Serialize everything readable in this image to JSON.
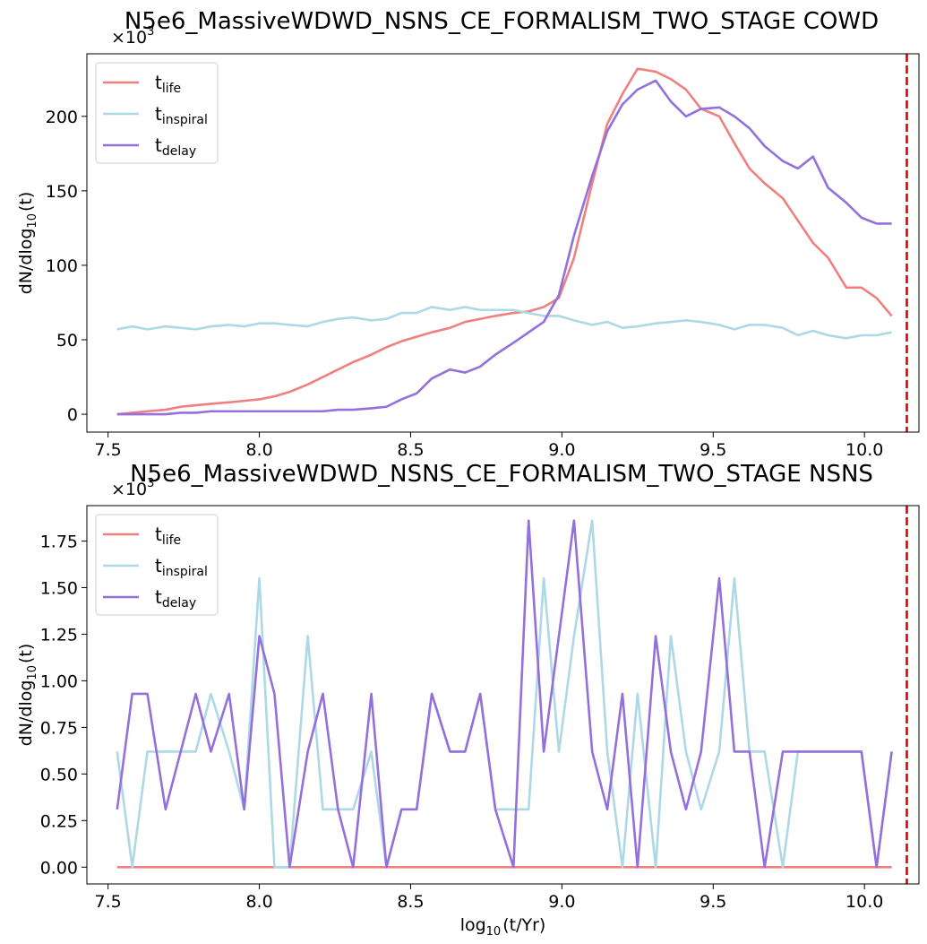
{
  "chart_data": [
    {
      "type": "line",
      "title": "N5e6_MassiveWDWD_NSNS_CE_FORMALISM_TWO_STAGE COWD",
      "xlabel": "",
      "ylabel_main": "dN/dlog",
      "ylabel_sub": "10",
      "ylabel_arg": "(t)",
      "sci_multiplier": "×10",
      "sci_exponent": "3",
      "xlim": [
        7.43,
        10.18
      ],
      "ylim": [
        -12,
        242
      ],
      "xticks": [
        "7.5",
        "8.0",
        "8.5",
        "9.0",
        "9.5",
        "10.0"
      ],
      "yticks": [
        "0",
        "50",
        "100",
        "150",
        "200"
      ],
      "vline": {
        "x": 10.14,
        "color": "#e00000"
      },
      "legend_position": "upper-left",
      "x": [
        7.53,
        7.58,
        7.63,
        7.69,
        7.74,
        7.79,
        7.84,
        7.9,
        7.95,
        8.0,
        8.05,
        8.1,
        8.16,
        8.21,
        8.26,
        8.31,
        8.37,
        8.42,
        8.47,
        8.52,
        8.57,
        8.63,
        8.68,
        8.73,
        8.78,
        8.84,
        8.89,
        8.94,
        8.99,
        9.04,
        9.1,
        9.15,
        9.2,
        9.25,
        9.31,
        9.36,
        9.41,
        9.46,
        9.52,
        9.57,
        9.62,
        9.67,
        9.73,
        9.78,
        9.83,
        9.88,
        9.94,
        9.99,
        10.04,
        10.09
      ],
      "series": [
        {
          "name": "t",
          "sub": "life",
          "color": "#f08080",
          "values": [
            0,
            1,
            2,
            3,
            5,
            6,
            7,
            8,
            9,
            10,
            12,
            15,
            20,
            25,
            30,
            35,
            40,
            45,
            49,
            52,
            55,
            58,
            62,
            64,
            66,
            68,
            69,
            72,
            78,
            105,
            155,
            195,
            215,
            232,
            230,
            225,
            218,
            205,
            200,
            182,
            165,
            155,
            145,
            130,
            115,
            105,
            85,
            85,
            78,
            66
          ]
        },
        {
          "name": "t",
          "sub": "inspiral",
          "color": "#add8e6",
          "values": [
            57,
            59,
            57,
            59,
            58,
            57,
            59,
            60,
            59,
            61,
            61,
            60,
            59,
            62,
            64,
            65,
            63,
            64,
            68,
            68,
            72,
            70,
            72,
            70,
            70,
            70,
            68,
            66,
            66,
            63,
            60,
            62,
            58,
            59,
            61,
            62,
            63,
            62,
            60,
            57,
            60,
            60,
            58,
            53,
            56,
            53,
            51,
            53,
            53,
            55
          ]
        },
        {
          "name": "t",
          "sub": "delay",
          "color": "#9370db",
          "values": [
            0,
            0,
            0,
            0,
            1,
            1,
            2,
            2,
            2,
            2,
            2,
            2,
            2,
            2,
            3,
            3,
            4,
            5,
            10,
            14,
            24,
            30,
            28,
            32,
            40,
            48,
            55,
            62,
            80,
            120,
            160,
            190,
            208,
            218,
            224,
            210,
            200,
            205,
            206,
            200,
            192,
            180,
            170,
            165,
            173,
            152,
            142,
            132,
            128,
            128
          ]
        }
      ]
    },
    {
      "type": "line",
      "title": "N5e6_MassiveWDWD_NSNS_CE_FORMALISM_TWO_STAGE NSNS",
      "xlabel_main": "log",
      "xlabel_sub": "10",
      "xlabel_arg": "(t/Yr)",
      "ylabel_main": "dN/dlog",
      "ylabel_sub": "10",
      "ylabel_arg": "(t)",
      "sci_multiplier": "×10",
      "sci_exponent": "3",
      "xlim": [
        7.43,
        10.18
      ],
      "ylim": [
        -0.09,
        1.94
      ],
      "xticks": [
        "7.5",
        "8.0",
        "8.5",
        "9.0",
        "9.5",
        "10.0"
      ],
      "yticks": [
        "0.00",
        "0.25",
        "0.50",
        "0.75",
        "1.00",
        "1.25",
        "1.50",
        "1.75"
      ],
      "vline": {
        "x": 10.14,
        "color": "#e00000"
      },
      "legend_position": "upper-left",
      "x": [
        7.53,
        7.58,
        7.63,
        7.69,
        7.74,
        7.79,
        7.84,
        7.9,
        7.95,
        8.0,
        8.05,
        8.1,
        8.16,
        8.21,
        8.26,
        8.31,
        8.37,
        8.42,
        8.47,
        8.52,
        8.57,
        8.63,
        8.68,
        8.73,
        8.78,
        8.84,
        8.89,
        8.94,
        8.99,
        9.04,
        9.1,
        9.15,
        9.2,
        9.25,
        9.31,
        9.36,
        9.41,
        9.46,
        9.52,
        9.57,
        9.62,
        9.67,
        9.73,
        9.78,
        9.83,
        9.88,
        9.94,
        9.99,
        10.04,
        10.09
      ],
      "series": [
        {
          "name": "t",
          "sub": "life",
          "color": "#f08080",
          "values": [
            0,
            0,
            0,
            0,
            0,
            0,
            0,
            0,
            0,
            0,
            0,
            0,
            0,
            0,
            0,
            0,
            0,
            0,
            0,
            0,
            0,
            0,
            0,
            0,
            0,
            0,
            0,
            0,
            0,
            0,
            0,
            0,
            0,
            0,
            0,
            0,
            0,
            0,
            0,
            0,
            0,
            0,
            0,
            0,
            0,
            0,
            0,
            0,
            0,
            0
          ]
        },
        {
          "name": "t",
          "sub": "inspiral",
          "color": "#add8e6",
          "values": [
            0.62,
            0,
            0.62,
            0.62,
            0.62,
            0.62,
            0.93,
            0.62,
            0.31,
            1.55,
            0,
            0,
            1.24,
            0.31,
            0.31,
            0.31,
            0.62,
            0,
            0.31,
            0.31,
            0.93,
            0.62,
            0.62,
            0.93,
            0.31,
            0.31,
            0.31,
            1.55,
            0.62,
            1.24,
            1.86,
            0.62,
            0,
            0.93,
            0,
            1.24,
            0.62,
            0.31,
            0.62,
            1.55,
            0.62,
            0.62,
            0,
            0.62,
            0.62,
            0.62,
            0.62,
            0.62,
            0,
            0.62
          ]
        },
        {
          "name": "t",
          "sub": "delay",
          "color": "#9370db",
          "values": [
            0.31,
            0.93,
            0.93,
            0.31,
            0.62,
            0.93,
            0.62,
            0.93,
            0.31,
            1.24,
            0.93,
            0,
            0.62,
            0.93,
            0.31,
            0,
            0.93,
            0,
            0.31,
            0.31,
            0.93,
            0.62,
            0.62,
            0.93,
            0.31,
            0,
            1.86,
            0.62,
            1.24,
            1.86,
            0.62,
            0.31,
            0.93,
            0,
            1.24,
            0.62,
            0.31,
            0.62,
            1.55,
            0.62,
            0.62,
            0,
            0.62,
            0.62,
            0.62,
            0.62,
            0.62,
            0.62,
            0,
            0.62
          ]
        }
      ]
    }
  ]
}
